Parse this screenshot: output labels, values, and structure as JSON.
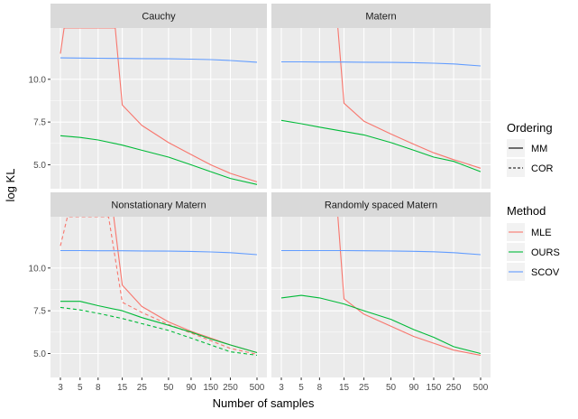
{
  "chart_data": {
    "type": "line",
    "xlabel": "Number of samples",
    "ylabel": "log KL",
    "x_ticks": [
      "3",
      "5",
      "8",
      "15",
      "25",
      "50",
      "90",
      "150",
      "250",
      "500"
    ],
    "ylim": [
      3.6,
      13.0
    ],
    "y_ticks": [
      5.0,
      7.5,
      10.0
    ],
    "y_tick_labels": [
      "5.0",
      "7.5",
      "10.0"
    ],
    "grid": true,
    "colors": {
      "MLE": "#F8766D",
      "OURS": "#00BA38",
      "SCOV": "#619CFF"
    },
    "legend": {
      "ordering_title": "Ordering",
      "ordering_items": [
        {
          "label": "MM",
          "dash": "solid"
        },
        {
          "label": "COR",
          "dash": "dashed"
        }
      ],
      "method_title": "Method",
      "method_items": [
        {
          "label": "MLE",
          "key": "MLE"
        },
        {
          "label": "OURS",
          "key": "OURS"
        },
        {
          "label": "SCOV",
          "key": "SCOV"
        }
      ]
    },
    "panels": [
      {
        "title": "Cauchy",
        "series": [
          {
            "method": "MLE",
            "ordering": "MM",
            "points": [
              [
                3,
                11.5
              ],
              [
                3.3,
                13.0
              ],
              [
                12.5,
                13.0
              ],
              [
                15,
                8.5
              ],
              [
                25,
                7.3
              ],
              [
                50,
                6.3
              ],
              [
                90,
                5.6
              ],
              [
                150,
                5.0
              ],
              [
                250,
                4.5
              ],
              [
                500,
                4.0
              ]
            ]
          },
          {
            "method": "OURS",
            "ordering": "MM",
            "points": [
              [
                3,
                6.7
              ],
              [
                5,
                6.6
              ],
              [
                8,
                6.45
              ],
              [
                15,
                6.15
              ],
              [
                25,
                5.85
              ],
              [
                50,
                5.45
              ],
              [
                90,
                5.0
              ],
              [
                150,
                4.6
              ],
              [
                250,
                4.2
              ],
              [
                500,
                3.85
              ]
            ]
          },
          {
            "method": "SCOV",
            "ordering": "MM",
            "points": [
              [
                3,
                11.25
              ],
              [
                5,
                11.24
              ],
              [
                8,
                11.23
              ],
              [
                15,
                11.22
              ],
              [
                25,
                11.21
              ],
              [
                50,
                11.2
              ],
              [
                90,
                11.18
              ],
              [
                150,
                11.15
              ],
              [
                250,
                11.1
              ],
              [
                500,
                11.0
              ]
            ]
          }
        ]
      },
      {
        "title": "Matern",
        "series": [
          {
            "method": "MLE",
            "ordering": "MM",
            "points": [
              [
                12.8,
                13.0
              ],
              [
                15,
                8.6
              ],
              [
                25,
                7.55
              ],
              [
                50,
                6.8
              ],
              [
                90,
                6.2
              ],
              [
                150,
                5.7
              ],
              [
                250,
                5.3
              ],
              [
                500,
                4.8
              ]
            ]
          },
          {
            "method": "OURS",
            "ordering": "MM",
            "points": [
              [
                3,
                7.6
              ],
              [
                5,
                7.4
              ],
              [
                8,
                7.2
              ],
              [
                15,
                6.95
              ],
              [
                25,
                6.75
              ],
              [
                50,
                6.3
              ],
              [
                90,
                5.85
              ],
              [
                150,
                5.45
              ],
              [
                250,
                5.2
              ],
              [
                500,
                4.6
              ]
            ]
          },
          {
            "method": "SCOV",
            "ordering": "MM",
            "points": [
              [
                3,
                11.02
              ],
              [
                5,
                11.02
              ],
              [
                8,
                11.01
              ],
              [
                15,
                11.01
              ],
              [
                25,
                11.0
              ],
              [
                50,
                10.99
              ],
              [
                90,
                10.97
              ],
              [
                150,
                10.94
              ],
              [
                250,
                10.9
              ],
              [
                500,
                10.78
              ]
            ]
          }
        ]
      },
      {
        "title": "Nonstationary Matern",
        "series": [
          {
            "method": "MLE",
            "ordering": "MM",
            "points": [
              [
                12.0,
                13.0
              ],
              [
                15,
                9.0
              ],
              [
                25,
                7.75
              ],
              [
                50,
                6.85
              ],
              [
                90,
                6.3
              ],
              [
                150,
                5.9
              ],
              [
                250,
                5.5
              ],
              [
                500,
                5.05
              ]
            ]
          },
          {
            "method": "MLE",
            "ordering": "COR",
            "points": [
              [
                3,
                11.3
              ],
              [
                3.6,
                13.0
              ],
              [
                10.5,
                13.0
              ],
              [
                15,
                8.0
              ],
              [
                25,
                7.4
              ],
              [
                50,
                6.7
              ],
              [
                90,
                6.2
              ],
              [
                150,
                5.75
              ],
              [
                250,
                5.3
              ],
              [
                500,
                4.95
              ]
            ]
          },
          {
            "method": "OURS",
            "ordering": "MM",
            "points": [
              [
                3,
                8.05
              ],
              [
                5,
                8.05
              ],
              [
                8,
                7.8
              ],
              [
                15,
                7.5
              ],
              [
                25,
                7.1
              ],
              [
                50,
                6.65
              ],
              [
                90,
                6.25
              ],
              [
                150,
                5.85
              ],
              [
                250,
                5.5
              ],
              [
                500,
                5.05
              ]
            ]
          },
          {
            "method": "OURS",
            "ordering": "COR",
            "points": [
              [
                3,
                7.7
              ],
              [
                5,
                7.55
              ],
              [
                8,
                7.35
              ],
              [
                15,
                7.05
              ],
              [
                25,
                6.75
              ],
              [
                50,
                6.35
              ],
              [
                90,
                5.9
              ],
              [
                150,
                5.5
              ],
              [
                250,
                5.1
              ],
              [
                500,
                4.9
              ]
            ]
          },
          {
            "method": "SCOV",
            "ordering": "MM",
            "points": [
              [
                3,
                11.02
              ],
              [
                5,
                11.02
              ],
              [
                8,
                11.01
              ],
              [
                15,
                11.01
              ],
              [
                25,
                11.0
              ],
              [
                50,
                10.99
              ],
              [
                90,
                10.97
              ],
              [
                150,
                10.94
              ],
              [
                250,
                10.9
              ],
              [
                500,
                10.78
              ]
            ]
          }
        ]
      },
      {
        "title": "Randomly spaced Matern",
        "series": [
          {
            "method": "MLE",
            "ordering": "MM",
            "points": [
              [
                12.8,
                13.0
              ],
              [
                15,
                8.2
              ],
              [
                25,
                7.3
              ],
              [
                50,
                6.6
              ],
              [
                90,
                6.0
              ],
              [
                150,
                5.6
              ],
              [
                250,
                5.2
              ],
              [
                500,
                4.9
              ]
            ]
          },
          {
            "method": "OURS",
            "ordering": "MM",
            "points": [
              [
                3,
                8.25
              ],
              [
                5,
                8.4
              ],
              [
                8,
                8.25
              ],
              [
                15,
                7.9
              ],
              [
                25,
                7.5
              ],
              [
                50,
                7.0
              ],
              [
                90,
                6.4
              ],
              [
                150,
                5.95
              ],
              [
                250,
                5.4
              ],
              [
                500,
                5.0
              ]
            ]
          },
          {
            "method": "SCOV",
            "ordering": "MM",
            "points": [
              [
                3,
                11.02
              ],
              [
                5,
                11.02
              ],
              [
                8,
                11.02
              ],
              [
                15,
                11.02
              ],
              [
                25,
                11.01
              ],
              [
                50,
                11.0
              ],
              [
                90,
                10.98
              ],
              [
                150,
                10.95
              ],
              [
                250,
                10.9
              ],
              [
                500,
                10.78
              ]
            ]
          }
        ]
      }
    ]
  }
}
